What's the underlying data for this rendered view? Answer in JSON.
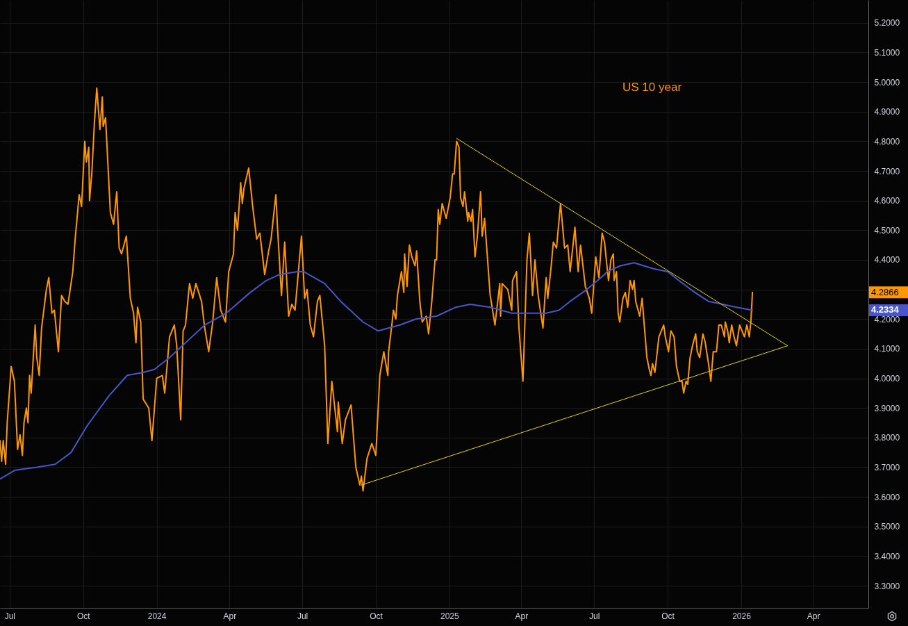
{
  "chart_data": {
    "type": "line",
    "xlim": [
      "2023-06-19",
      "2026-06-09"
    ],
    "xticks": [
      {
        "value": "2023-07-01",
        "label": "Jul"
      },
      {
        "value": "2023-10-01",
        "label": "Oct"
      },
      {
        "value": "2024-01-01",
        "label": "2024"
      },
      {
        "value": "2024-04-01",
        "label": "Apr"
      },
      {
        "value": "2024-07-01",
        "label": "Jul"
      },
      {
        "value": "2024-10-01",
        "label": "Oct"
      },
      {
        "value": "2025-01-01",
        "label": "2025"
      },
      {
        "value": "2025-04-01",
        "label": "Apr"
      },
      {
        "value": "2025-07-01",
        "label": "Jul"
      },
      {
        "value": "2025-10-01",
        "label": "Oct"
      },
      {
        "value": "2026-01-01",
        "label": "2026"
      },
      {
        "value": "2026-04-01",
        "label": "Apr"
      }
    ],
    "ylim": [
      3.225,
      5.277
    ],
    "yticks": [
      {
        "value": 3.3,
        "label": "3.3000"
      },
      {
        "value": 3.4,
        "label": "3.4000"
      },
      {
        "value": 3.5,
        "label": "3.5000"
      },
      {
        "value": 3.6,
        "label": "3.6000"
      },
      {
        "value": 3.7,
        "label": "3.7000"
      },
      {
        "value": 3.8,
        "label": "3.8000"
      },
      {
        "value": 3.9,
        "label": "3.9000"
      },
      {
        "value": 4.0,
        "label": "4.0000"
      },
      {
        "value": 4.1,
        "label": "4.1000"
      },
      {
        "value": 4.2,
        "label": "4.2000"
      },
      {
        "value": 4.3,
        "label": null
      },
      {
        "value": 4.4,
        "label": "4.4000"
      },
      {
        "value": 4.5,
        "label": "4.5000"
      },
      {
        "value": 4.6,
        "label": "4.6000"
      },
      {
        "value": 4.7,
        "label": "4.7000"
      },
      {
        "value": 4.8,
        "label": "4.8000"
      },
      {
        "value": 4.9,
        "label": "4.9000"
      },
      {
        "value": 5.0,
        "label": "5.0000"
      },
      {
        "value": 5.1,
        "label": "5.1000"
      },
      {
        "value": 5.2,
        "label": "5.2000"
      }
    ],
    "grid": true,
    "annotations": [
      "4.2866",
      "4.2334"
    ],
    "series": [
      {
        "name": "US 10 year",
        "color": "#ff9800",
        "x": [
          "2023-06-19",
          "2023-06-21",
          "2023-06-23",
          "2023-06-26",
          "2023-06-28",
          "2023-07-03",
          "2023-07-07",
          "2023-07-11",
          "2023-07-14",
          "2023-07-17",
          "2023-07-19",
          "2023-07-22",
          "2023-07-24",
          "2023-07-26",
          "2023-07-28",
          "2023-08-02",
          "2023-08-04",
          "2023-08-07",
          "2023-08-10",
          "2023-08-16",
          "2023-08-19",
          "2023-08-23",
          "2023-08-26",
          "2023-08-31",
          "2023-09-04",
          "2023-09-08",
          "2023-09-12",
          "2023-09-18",
          "2023-09-21",
          "2023-09-26",
          "2023-09-29",
          "2023-10-03",
          "2023-10-05",
          "2023-10-08",
          "2023-10-09",
          "2023-10-12",
          "2023-10-15",
          "2023-10-18",
          "2023-10-22",
          "2023-10-25",
          "2023-10-26",
          "2023-10-29",
          "2023-11-04",
          "2023-11-08",
          "2023-11-12",
          "2023-11-15",
          "2023-11-18",
          "2023-11-24",
          "2023-11-29",
          "2023-12-03",
          "2023-12-06",
          "2023-12-08",
          "2023-12-12",
          "2023-12-15",
          "2023-12-22",
          "2023-12-26",
          "2024-01-01",
          "2024-01-08",
          "2024-01-11",
          "2024-01-17",
          "2024-01-23",
          "2024-01-26",
          "2024-01-31",
          "2024-02-03",
          "2024-02-06",
          "2024-02-11",
          "2024-02-15",
          "2024-02-19",
          "2024-02-26",
          "2024-03-01",
          "2024-03-06",
          "2024-03-11",
          "2024-03-16",
          "2024-03-21",
          "2024-03-27",
          "2024-03-31",
          "2024-04-06",
          "2024-04-08",
          "2024-04-11",
          "2024-04-15",
          "2024-04-17",
          "2024-04-19",
          "2024-04-25",
          "2024-04-30",
          "2024-05-05",
          "2024-05-09",
          "2024-05-15",
          "2024-05-20",
          "2024-05-23",
          "2024-05-29",
          "2024-05-31",
          "2024-06-05",
          "2024-06-09",
          "2024-06-14",
          "2024-06-18",
          "2024-06-22",
          "2024-06-30",
          "2024-07-04",
          "2024-07-07",
          "2024-07-11",
          "2024-07-15",
          "2024-07-20",
          "2024-07-23",
          "2024-07-29",
          "2024-08-02",
          "2024-08-07",
          "2024-08-14",
          "2024-08-15",
          "2024-08-20",
          "2024-08-24",
          "2024-08-31",
          "2024-09-06",
          "2024-09-11",
          "2024-09-13",
          "2024-09-15",
          "2024-09-20",
          "2024-09-26",
          "2024-10-01",
          "2024-10-06",
          "2024-10-11",
          "2024-10-16",
          "2024-10-17",
          "2024-10-21",
          "2024-10-23",
          "2024-10-26",
          "2024-10-28",
          "2024-11-02",
          "2024-11-05",
          "2024-11-06",
          "2024-11-09",
          "2024-11-12",
          "2024-11-15",
          "2024-11-19",
          "2024-11-21",
          "2024-11-25",
          "2024-11-28",
          "2024-12-03",
          "2024-12-06",
          "2024-12-10",
          "2024-12-14",
          "2024-12-16",
          "2024-12-18",
          "2024-12-20",
          "2024-12-23",
          "2024-12-28",
          "2025-01-02",
          "2025-01-05",
          "2025-01-07",
          "2025-01-10",
          "2025-01-13",
          "2025-01-15",
          "2025-01-18",
          "2025-01-20",
          "2025-01-24",
          "2025-01-25",
          "2025-01-28",
          "2025-01-30",
          "2025-02-02",
          "2025-02-05",
          "2025-02-09",
          "2025-02-11",
          "2025-02-14",
          "2025-02-21",
          "2025-02-27",
          "2025-03-05",
          "2025-03-06",
          "2025-03-08",
          "2025-03-15",
          "2025-03-20",
          "2025-03-21",
          "2025-03-26",
          "2025-03-29",
          "2025-04-03",
          "2025-04-08",
          "2025-04-11",
          "2025-04-15",
          "2025-04-18",
          "2025-04-22",
          "2025-04-28",
          "2025-05-02",
          "2025-05-04",
          "2025-05-08",
          "2025-05-11",
          "2025-05-15",
          "2025-05-20",
          "2025-05-25",
          "2025-05-29",
          "2025-06-01",
          "2025-06-07",
          "2025-06-11",
          "2025-06-14",
          "2025-06-20",
          "2025-06-25",
          "2025-06-28",
          "2025-07-03",
          "2025-07-07",
          "2025-07-11",
          "2025-07-14",
          "2025-07-17",
          "2025-07-19",
          "2025-07-22",
          "2025-07-25",
          "2025-07-26",
          "2025-07-29",
          "2025-07-31",
          "2025-08-02",
          "2025-08-06",
          "2025-08-09",
          "2025-08-12",
          "2025-08-15",
          "2025-08-18",
          "2025-08-20",
          "2025-08-22",
          "2025-08-27",
          "2025-08-30",
          "2025-09-05",
          "2025-09-08",
          "2025-09-10",
          "2025-09-12",
          "2025-09-15",
          "2025-09-20",
          "2025-09-26",
          "2025-09-28",
          "2025-10-02",
          "2025-10-05",
          "2025-10-09",
          "2025-10-12",
          "2025-10-16",
          "2025-10-19",
          "2025-10-21",
          "2025-10-24",
          "2025-10-26",
          "2025-10-29",
          "2025-11-01",
          "2025-11-05",
          "2025-11-07",
          "2025-11-10",
          "2025-11-14",
          "2025-11-17",
          "2025-11-21",
          "2025-11-24",
          "2025-11-27",
          "2025-12-01",
          "2025-12-04",
          "2025-12-07",
          "2025-12-11",
          "2025-12-12",
          "2025-12-15",
          "2025-12-17",
          "2025-12-20",
          "2025-12-23",
          "2025-12-26",
          "2025-12-30",
          "2026-01-02",
          "2026-01-05",
          "2026-01-08",
          "2026-01-11",
          "2026-01-13",
          "2026-01-15"
        ],
        "values": [
          3.79,
          3.72,
          3.79,
          3.71,
          3.85,
          4.04,
          3.99,
          3.76,
          3.81,
          3.74,
          3.85,
          3.9,
          3.85,
          4.01,
          3.95,
          4.18,
          4.07,
          4.01,
          4.17,
          4.3,
          4.34,
          4.22,
          4.23,
          4.09,
          4.28,
          4.26,
          4.25,
          4.36,
          4.47,
          4.62,
          4.58,
          4.8,
          4.73,
          4.78,
          4.6,
          4.7,
          4.86,
          4.98,
          4.84,
          4.95,
          4.85,
          4.88,
          4.56,
          4.52,
          4.63,
          4.44,
          4.42,
          4.48,
          4.27,
          4.22,
          4.12,
          4.24,
          4.19,
          3.93,
          3.9,
          3.79,
          4.0,
          4.01,
          3.95,
          4.14,
          4.18,
          4.11,
          3.86,
          4.16,
          4.18,
          4.32,
          4.27,
          4.32,
          4.26,
          4.17,
          4.09,
          4.19,
          4.34,
          4.23,
          4.19,
          4.36,
          4.42,
          4.56,
          4.5,
          4.66,
          4.59,
          4.64,
          4.71,
          4.58,
          4.47,
          4.49,
          4.35,
          4.43,
          4.47,
          4.62,
          4.51,
          4.28,
          4.46,
          4.21,
          4.25,
          4.23,
          4.48,
          4.27,
          4.3,
          4.18,
          4.14,
          4.26,
          4.28,
          4.11,
          3.78,
          3.99,
          3.82,
          3.92,
          3.78,
          3.86,
          3.91,
          3.7,
          3.64,
          3.67,
          3.62,
          3.73,
          3.78,
          3.74,
          4.01,
          4.09,
          4.01,
          4.09,
          4.18,
          4.23,
          4.2,
          4.28,
          4.36,
          4.29,
          4.42,
          4.31,
          4.45,
          4.41,
          4.38,
          4.43,
          4.26,
          4.19,
          4.21,
          4.15,
          4.26,
          4.4,
          4.4,
          4.57,
          4.52,
          4.59,
          4.54,
          4.61,
          4.69,
          4.69,
          4.8,
          4.78,
          4.61,
          4.58,
          4.63,
          4.53,
          4.56,
          4.53,
          4.57,
          4.41,
          4.48,
          4.63,
          4.48,
          4.54,
          4.28,
          4.18,
          4.32,
          4.21,
          4.32,
          4.3,
          4.23,
          4.33,
          4.36,
          4.17,
          3.99,
          4.4,
          4.49,
          4.28,
          4.4,
          4.28,
          4.17,
          4.34,
          4.27,
          4.37,
          4.46,
          4.44,
          4.59,
          4.44,
          4.45,
          4.36,
          4.51,
          4.36,
          4.45,
          4.31,
          4.27,
          4.22,
          4.41,
          4.34,
          4.49,
          4.46,
          4.38,
          4.33,
          4.4,
          4.42,
          4.33,
          4.36,
          4.22,
          4.19,
          4.27,
          4.29,
          4.24,
          4.33,
          4.3,
          4.33,
          4.26,
          4.21,
          4.27,
          4.07,
          4.03,
          4.01,
          4.05,
          4.02,
          4.14,
          4.18,
          4.14,
          4.09,
          4.16,
          4.14,
          4.04,
          3.99,
          3.99,
          3.95,
          3.99,
          3.98,
          4.07,
          4.11,
          4.15,
          4.09,
          4.07,
          4.15,
          4.12,
          4.05,
          3.99,
          4.09,
          4.09,
          4.18,
          4.18,
          4.14,
          4.19,
          4.16,
          4.12,
          4.18,
          4.14,
          4.11,
          4.18,
          4.16,
          4.14,
          4.18,
          4.14,
          4.19,
          4.29
        ]
      },
      {
        "color": "#4a56c8",
        "x": [
          "2023-06-19",
          "2023-07-08",
          "2023-08-04",
          "2023-08-27",
          "2023-09-16",
          "2023-10-06",
          "2023-11-02",
          "2023-11-25",
          "2023-12-15",
          "2023-12-29",
          "2024-01-17",
          "2024-02-06",
          "2024-03-01",
          "2024-03-28",
          "2024-04-27",
          "2024-05-17",
          "2024-06-02",
          "2024-06-25",
          "2024-07-03",
          "2024-07-29",
          "2024-08-18",
          "2024-09-15",
          "2024-10-04",
          "2024-10-31",
          "2024-11-20",
          "2024-12-16",
          "2025-01-09",
          "2025-01-27",
          "2025-02-21",
          "2025-03-20",
          "2025-04-08",
          "2025-05-02",
          "2025-05-18",
          "2025-06-01",
          "2025-06-22",
          "2025-07-14",
          "2025-07-17",
          "2025-08-03",
          "2025-08-20",
          "2025-09-01",
          "2025-09-13",
          "2025-10-01",
          "2025-10-15",
          "2025-11-04",
          "2025-11-21",
          "2025-12-09",
          "2025-12-26",
          "2026-01-15"
        ],
        "values": [
          3.66,
          3.69,
          3.7,
          3.71,
          3.75,
          3.84,
          3.94,
          4.01,
          4.02,
          4.03,
          4.07,
          4.12,
          4.18,
          4.22,
          4.29,
          4.33,
          4.35,
          4.36,
          4.36,
          4.32,
          4.26,
          4.19,
          4.16,
          4.18,
          4.2,
          4.21,
          4.24,
          4.25,
          4.24,
          4.22,
          4.22,
          4.22,
          4.23,
          4.26,
          4.3,
          4.35,
          4.36,
          4.38,
          4.39,
          4.38,
          4.37,
          4.36,
          4.33,
          4.29,
          4.26,
          4.25,
          4.24,
          4.23
        ]
      },
      {
        "type": "line",
        "color": "#e6d600",
        "x": [
          "2025-01-10",
          "2026-02-28"
        ],
        "values": [
          4.81,
          4.11
        ]
      },
      {
        "type": "line",
        "color": "#e6d600",
        "x": [
          "2024-09-13",
          "2026-02-28"
        ],
        "values": [
          3.64,
          4.11
        ]
      }
    ]
  }
}
